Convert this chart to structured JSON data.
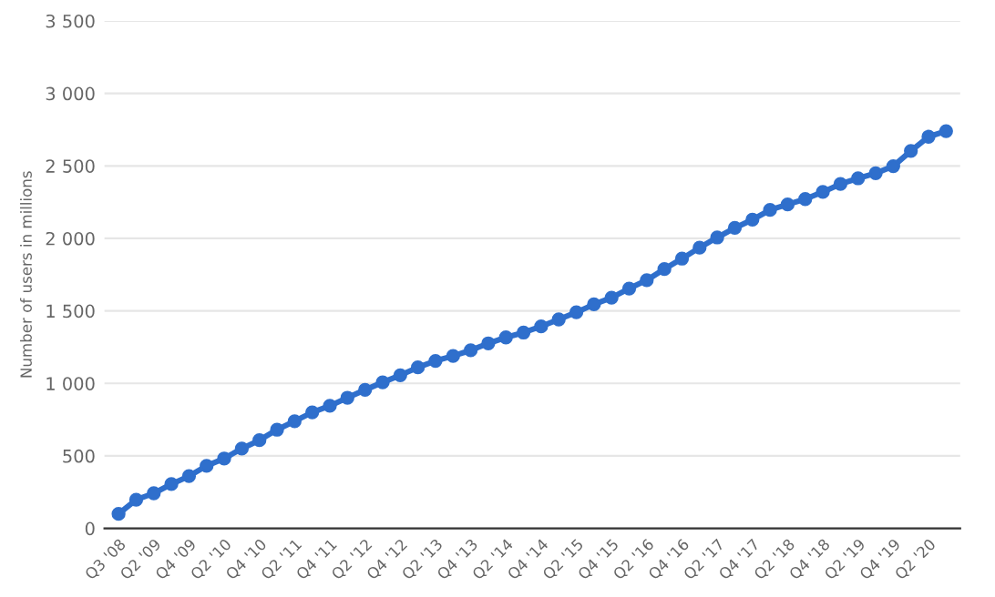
{
  "chart_data": {
    "type": "line",
    "ylabel": "Number of users in millions",
    "categories": [
      "Q3 '08",
      null,
      "Q2 '09",
      null,
      "Q4 '09",
      null,
      "Q2 '10",
      null,
      "Q4 '10",
      null,
      "Q2 '11",
      null,
      "Q4 '11",
      null,
      "Q2 '12",
      null,
      "Q4 '12",
      null,
      "Q2 '13",
      null,
      "Q4 '13",
      null,
      "Q2 '14",
      null,
      "Q4 '14",
      null,
      "Q2 '15",
      null,
      "Q4 '15",
      null,
      "Q2 '16",
      null,
      "Q4 '16",
      null,
      "Q2 '17",
      null,
      "Q4 '17",
      null,
      "Q2 '18",
      null,
      "Q4 '18",
      null,
      "Q2 '19",
      null,
      "Q4 '19",
      null,
      "Q2 '20",
      null
    ],
    "series": [
      {
        "color": "#2f6fcc",
        "values": [
          100,
          197,
          242,
          305,
          360,
          431,
          482,
          550,
          608,
          680,
          739,
          800,
          845,
          901,
          955,
          1007,
          1056,
          1110,
          1155,
          1189,
          1228,
          1276,
          1317,
          1350,
          1393,
          1441,
          1490,
          1545,
          1591,
          1654,
          1712,
          1788,
          1860,
          1936,
          2006,
          2072,
          2129,
          2196,
          2234,
          2271,
          2320,
          2375,
          2414,
          2449,
          2498,
          2603,
          2701,
          2740
        ]
      }
    ],
    "ylim": [
      0,
      3500
    ],
    "yticks": [
      {
        "value": 0,
        "label": "0"
      },
      {
        "value": 500,
        "label": "500"
      },
      {
        "value": 1000,
        "label": "1 000"
      },
      {
        "value": 1500,
        "label": "1 500"
      },
      {
        "value": 2000,
        "label": "2 000"
      },
      {
        "value": 2500,
        "label": "2 500"
      },
      {
        "value": 3000,
        "label": "3 000"
      },
      {
        "value": 3500,
        "label": "3 500"
      }
    ],
    "grid": "y",
    "marker": "circle",
    "line_style": "solid"
  }
}
